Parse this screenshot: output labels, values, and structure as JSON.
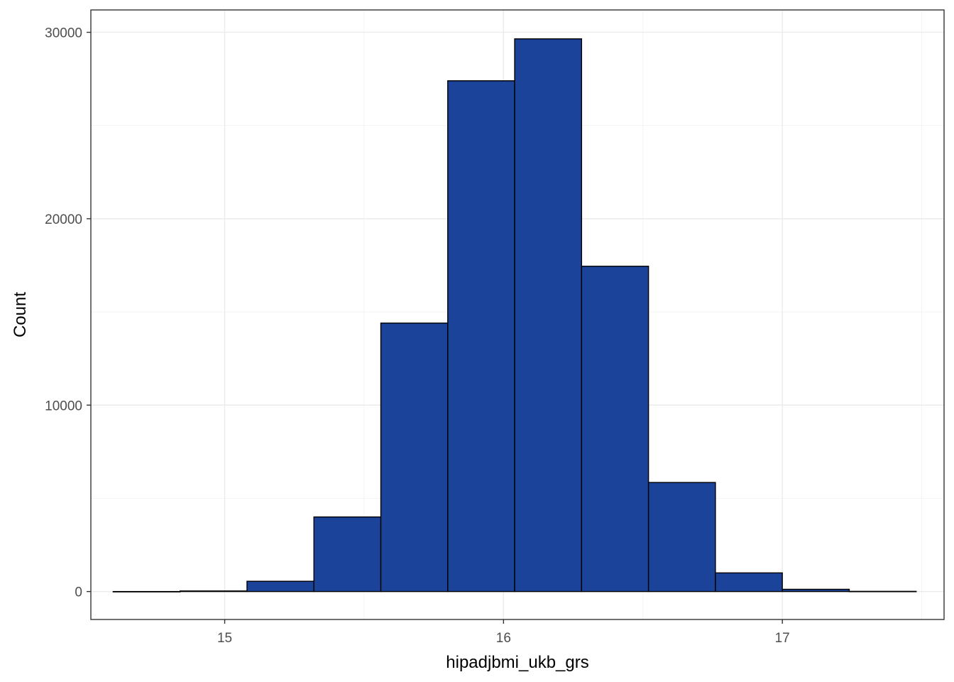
{
  "chart_data": {
    "type": "bar",
    "subtype": "histogram",
    "xlabel": "hipadjbmi_ukb_grs",
    "ylabel": "Count",
    "xlim": [
      14.52,
      17.58
    ],
    "ylim": [
      -1500,
      31200
    ],
    "x_ticks": [
      15,
      16,
      17
    ],
    "x_tick_labels": [
      "15",
      "16",
      "17"
    ],
    "y_ticks": [
      0,
      10000,
      20000,
      30000
    ],
    "y_tick_labels": [
      "0",
      "10000",
      "20000",
      "30000"
    ],
    "grid": true,
    "bins": [
      {
        "xmin": 14.6,
        "xmax": 14.84,
        "count": 0
      },
      {
        "xmin": 14.84,
        "xmax": 15.08,
        "count": 30
      },
      {
        "xmin": 15.08,
        "xmax": 15.32,
        "count": 550
      },
      {
        "xmin": 15.32,
        "xmax": 15.56,
        "count": 4000
      },
      {
        "xmin": 15.56,
        "xmax": 15.8,
        "count": 14400
      },
      {
        "xmin": 15.8,
        "xmax": 16.04,
        "count": 27400
      },
      {
        "xmin": 16.04,
        "xmax": 16.28,
        "count": 29650
      },
      {
        "xmin": 16.28,
        "xmax": 16.52,
        "count": 17450
      },
      {
        "xmin": 16.52,
        "xmax": 16.76,
        "count": 5850
      },
      {
        "xmin": 16.76,
        "xmax": 17.0,
        "count": 1000
      },
      {
        "xmin": 17.0,
        "xmax": 17.24,
        "count": 120
      },
      {
        "xmin": 17.24,
        "xmax": 17.48,
        "count": 10
      }
    ],
    "fill_color": "#1A4399",
    "border_color": "#000000"
  }
}
